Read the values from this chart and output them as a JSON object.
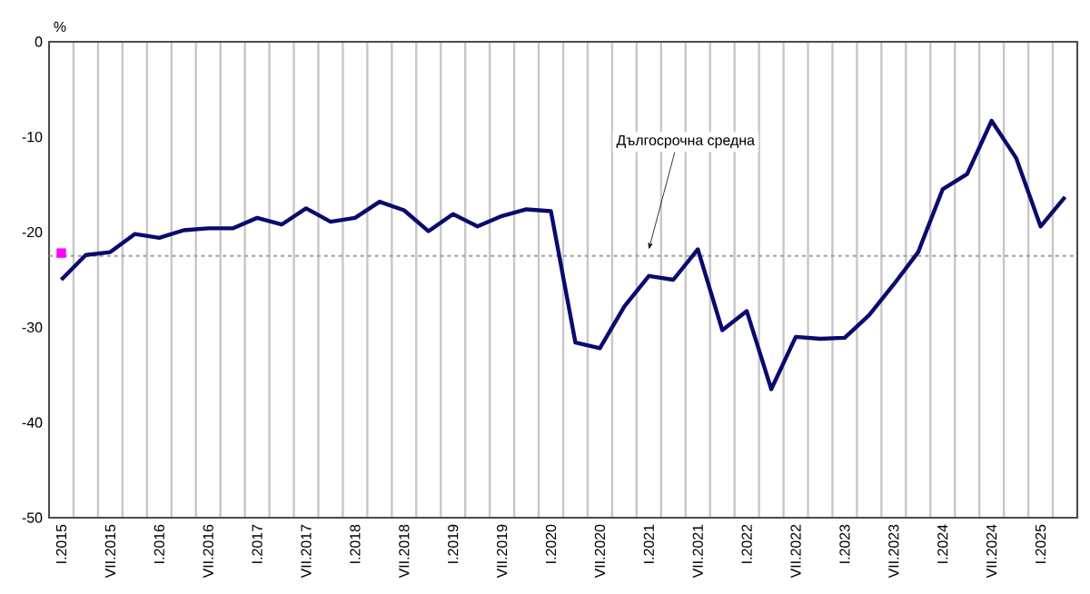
{
  "chart_data": {
    "type": "line",
    "ylabel": "%",
    "categories": [
      "I.2015",
      null,
      "VII.2015",
      null,
      "I.2016",
      null,
      "VII.2016",
      null,
      "I.2017",
      null,
      "VII.2017",
      null,
      "I.2018",
      null,
      "VII.2018",
      null,
      "I.2019",
      null,
      "VII.2019",
      null,
      "I.2020",
      null,
      "VII.2020",
      null,
      "I.2021",
      null,
      "VII.2021",
      null,
      "I.2022",
      null,
      "VII.2022",
      null,
      "I.2023",
      null,
      "VII.2023",
      null,
      "I.2024",
      null,
      "VII.2024",
      null,
      "I.2025",
      null
    ],
    "series": [
      {
        "color": "#0a0a6e",
        "values": [
          -25.0,
          -22.4,
          -22.1,
          -20.2,
          -20.6,
          -19.8,
          -19.6,
          -19.6,
          -18.5,
          -19.2,
          -17.5,
          -18.9,
          -18.5,
          -16.8,
          -17.7,
          -19.9,
          -18.1,
          -19.4,
          -18.3,
          -17.6,
          -17.8,
          -31.6,
          -32.2,
          -27.8,
          -24.6,
          -25.0,
          -21.8,
          -30.3,
          -28.3,
          -36.5,
          -31.0,
          -31.2,
          -31.1,
          -28.7,
          -25.5,
          -22.1,
          -15.5,
          -13.9,
          -8.3,
          -12.2,
          -19.4,
          -16.3
        ]
      },
      {
        "type": "scatter",
        "color": "#ff00ff",
        "marker": "square",
        "x": [
          "I.2015"
        ],
        "values": [
          -22.2
        ]
      }
    ],
    "ylim": [
      -50,
      0
    ],
    "yticks": [
      0,
      -10,
      -20,
      -30,
      -40,
      -50
    ],
    "grid": "x",
    "ref_lines": [
      {
        "axis": "y",
        "value": -22.5,
        "color": "#a0a0a0",
        "line_style": "dotted"
      }
    ],
    "annotations": [
      {
        "text": "Дългосрочна средна",
        "x": "I.2021",
        "y": -22.5
      }
    ]
  }
}
